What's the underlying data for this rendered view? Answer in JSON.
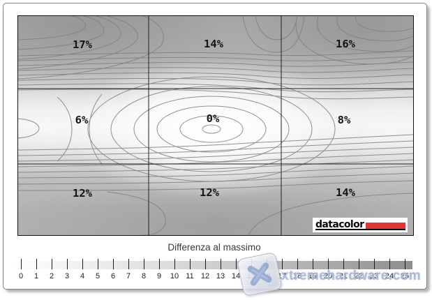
{
  "window": {
    "type": "chart-panel"
  },
  "plot": {
    "zone_values": [
      "17%",
      "14%",
      "16%",
      "6%",
      "0%",
      "8%",
      "12%",
      "12%",
      "14%"
    ]
  },
  "legend": {
    "title": "Differenza al massimo"
  },
  "scale": {
    "tick_labels": [
      "0",
      "1",
      "2",
      "3",
      "4",
      "5",
      "6",
      "7",
      "8",
      "9",
      "10",
      "11",
      "12",
      "13",
      "14",
      "15",
      "16",
      "17",
      "18",
      "19",
      "20",
      "21",
      "22",
      "23",
      "24",
      "25"
    ]
  },
  "logo": {
    "text": "datacolor",
    "accent_color": "#e23434"
  },
  "watermark": {
    "text": "xtremehardware.com"
  },
  "colors": {
    "contour_line": "#7f7f7f",
    "grid_line": "#1f1f1f",
    "dark_region": "#a8a8a8",
    "light_region": "#fafafa"
  },
  "chart_data": {
    "type": "heatmap",
    "subtype": "contour-uniformity-map",
    "title": "Differenza al massimo",
    "grid_rows": 3,
    "grid_cols": 3,
    "values_percent": [
      [
        17,
        14,
        16
      ],
      [
        6,
        0,
        8
      ],
      [
        12,
        12,
        14
      ]
    ],
    "value_labels": [
      [
        "17%",
        "14%",
        "16%"
      ],
      [
        "6%",
        "0%",
        "8%"
      ],
      [
        "12%",
        "12%",
        "14%"
      ]
    ],
    "colorbar": {
      "title": "Differenza al massimo",
      "min": 0,
      "max": 25,
      "tick_step": 1,
      "low_color": "white",
      "high_color": "dark-gray"
    },
    "layout_hints": {
      "minimum_at": "center",
      "contour_lines": true,
      "grid_overlay": "3x3"
    }
  }
}
